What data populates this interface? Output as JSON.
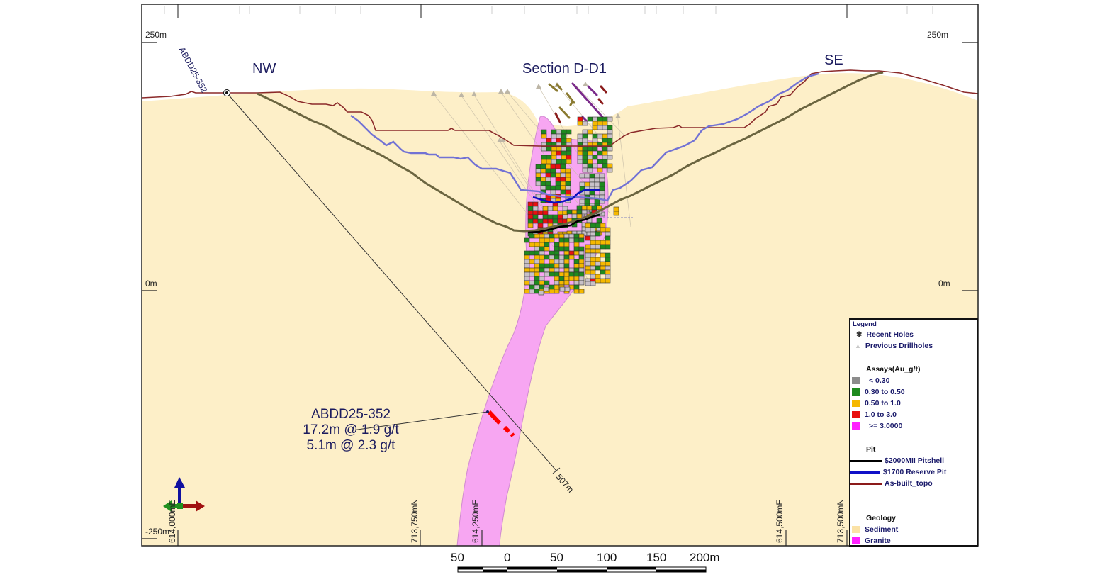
{
  "title": "Section D-D1",
  "directions": {
    "left": "NW",
    "right": "SE"
  },
  "elevation_labels": {
    "top_left": "250m",
    "top_right": "250m",
    "mid_left": "0m",
    "mid_right": "0m",
    "bottom_left": "-250m"
  },
  "grid_labels": {
    "e_614000": "614,000mE",
    "n_713750": "713,750mN",
    "e_614250": "614,250mE",
    "e_614500": "614,500mE",
    "n_713500": "713,500mN"
  },
  "drillhole": {
    "name": "ABDD25-352",
    "end_depth": "507m",
    "intercept_title": "ABDD25-352",
    "intercept_1": "17.2m @ 1.9 g/t",
    "intercept_2": "5.1m @ 2.3 g/t"
  },
  "scale_bar": {
    "labels": [
      "50",
      "0",
      "50",
      "100",
      "150",
      "200m"
    ]
  },
  "legend": {
    "title": "Legend",
    "recent_holes": "Recent Holes",
    "previous_drillholes": "Previous Drillholes",
    "assays_header": "Assays(Au_g/t)",
    "assays": [
      {
        "label": "< 0.30",
        "color": "#8c8c8c"
      },
      {
        "label": "0.30 to 0.50",
        "color": "#1e8a1e"
      },
      {
        "label": "0.50 to 1.0",
        "color": "#f5b800"
      },
      {
        "label": "1.0 to 3.0",
        "color": "#e81010"
      },
      {
        "label": ">= 3.0000",
        "color": "#ff20ff"
      }
    ],
    "pit_header": "Pit",
    "pits": [
      {
        "label": "$2000MII Pitshell",
        "color": "#000000"
      },
      {
        "label": "$1700 Reserve Pit",
        "color": "#1010c8"
      },
      {
        "label": "As-built_topo",
        "color": "#8b1a1a"
      }
    ],
    "geology_header": "Geology",
    "geology": [
      {
        "label": "Sediment",
        "color": "#fbe2a6"
      },
      {
        "label": "Granite",
        "color": "#ff20ff"
      }
    ]
  },
  "colors": {
    "sediment": "#fdefc8",
    "granite_body": "#f7a6f2",
    "topo": "#8b2a2a",
    "reserve_pit": "#6b6bd0",
    "pitshell_olive": "#6b6540",
    "text_navy": "#1b1b5e"
  }
}
